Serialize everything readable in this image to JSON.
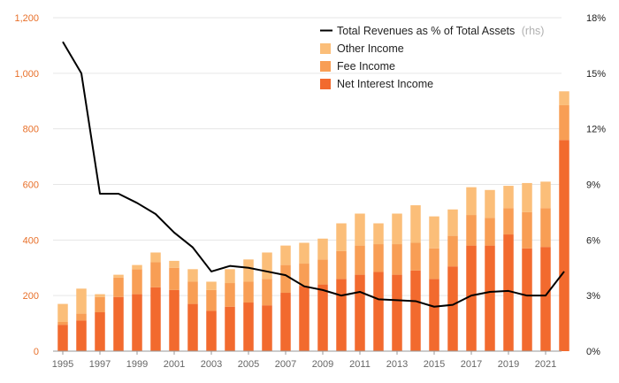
{
  "chart_data": {
    "type": "bar",
    "stacked": true,
    "categories": [
      "1995",
      "1996",
      "1997",
      "1998",
      "1999",
      "2000",
      "2001",
      "2002",
      "2003",
      "2004",
      "2005",
      "2006",
      "2007",
      "2008",
      "2009",
      "2010",
      "2011",
      "2012",
      "2013",
      "2014",
      "2015",
      "2016",
      "2017",
      "2018",
      "2019",
      "2020",
      "2021",
      "2022"
    ],
    "x_tick_labels": [
      "1995",
      "1997",
      "1999",
      "2001",
      "2003",
      "2005",
      "2007",
      "2009",
      "2011",
      "2013",
      "2015",
      "2017",
      "2019",
      "2021"
    ],
    "ylim": [
      0,
      1200
    ],
    "y_ticks": [
      0,
      200,
      400,
      600,
      800,
      1000,
      1200
    ],
    "y_tick_labels": [
      "0",
      "200",
      "400",
      "600",
      "800",
      "1,000",
      "1,200"
    ],
    "y2lim": [
      0,
      18
    ],
    "y2_ticks": [
      0,
      3,
      6,
      9,
      12,
      15,
      18
    ],
    "y2_tick_labels": [
      "0%",
      "3%",
      "6%",
      "9%",
      "12%",
      "15%",
      "18%"
    ],
    "grid": true,
    "legend_position": "top-right",
    "series": [
      {
        "name": "Net Interest Income",
        "color": "#F26A2E",
        "values": [
          95,
          110,
          140,
          195,
          205,
          230,
          220,
          170,
          145,
          160,
          175,
          165,
          210,
          235,
          240,
          260,
          275,
          285,
          275,
          290,
          260,
          305,
          380,
          380,
          420,
          370,
          375,
          760
        ]
      },
      {
        "name": "Fee Income",
        "color": "#F89E55",
        "values": [
          10,
          25,
          55,
          70,
          90,
          90,
          80,
          80,
          75,
          85,
          75,
          95,
          100,
          80,
          90,
          100,
          105,
          100,
          110,
          100,
          110,
          110,
          110,
          100,
          95,
          130,
          140,
          125
        ]
      },
      {
        "name": "Other Income",
        "color": "#FBBE79",
        "values": [
          65,
          90,
          10,
          10,
          15,
          35,
          25,
          45,
          30,
          50,
          80,
          95,
          70,
          75,
          75,
          100,
          115,
          75,
          110,
          135,
          115,
          95,
          100,
          100,
          80,
          105,
          95,
          50
        ]
      }
    ],
    "line_series": {
      "name": "Total Revenues as % of Total Assets",
      "note": "(rhs)",
      "axis": "right",
      "color": "#000000",
      "values": [
        16.7,
        15.0,
        8.5,
        8.5,
        8.0,
        7.4,
        6.4,
        5.6,
        4.3,
        4.6,
        4.5,
        4.3,
        4.1,
        3.5,
        3.3,
        3.0,
        3.2,
        2.8,
        2.75,
        2.7,
        2.4,
        2.5,
        3.0,
        3.2,
        3.25,
        3.0,
        3.0,
        4.3
      ]
    }
  }
}
